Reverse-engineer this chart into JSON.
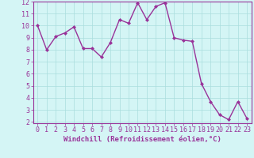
{
  "x": [
    0,
    1,
    2,
    3,
    4,
    5,
    6,
    7,
    8,
    9,
    10,
    11,
    12,
    13,
    14,
    15,
    16,
    17,
    18,
    19,
    20,
    21,
    22,
    23
  ],
  "y": [
    10.0,
    8.0,
    9.1,
    9.4,
    9.9,
    8.1,
    8.1,
    7.4,
    8.6,
    10.5,
    10.2,
    11.9,
    10.5,
    11.6,
    11.9,
    9.0,
    8.8,
    8.7,
    5.2,
    3.7,
    2.6,
    2.2,
    3.7,
    2.3
  ],
  "line_color": "#993399",
  "marker": "D",
  "marker_size": 2.0,
  "bg_color": "#d4f5f5",
  "grid_color": "#aadddd",
  "xlabel": "Windchill (Refroidissement éolien,°C)",
  "ylabel": "",
  "xlim": [
    -0.5,
    23.5
  ],
  "ylim": [
    2,
    12
  ],
  "yticks": [
    2,
    3,
    4,
    5,
    6,
    7,
    8,
    9,
    10,
    11,
    12
  ],
  "xticks": [
    0,
    1,
    2,
    3,
    4,
    5,
    6,
    7,
    8,
    9,
    10,
    11,
    12,
    13,
    14,
    15,
    16,
    17,
    18,
    19,
    20,
    21,
    22,
    23
  ],
  "tick_color": "#993399",
  "axis_color": "#993399",
  "label_fontsize": 6.5,
  "tick_fontsize": 6.0,
  "line_width": 1.0
}
